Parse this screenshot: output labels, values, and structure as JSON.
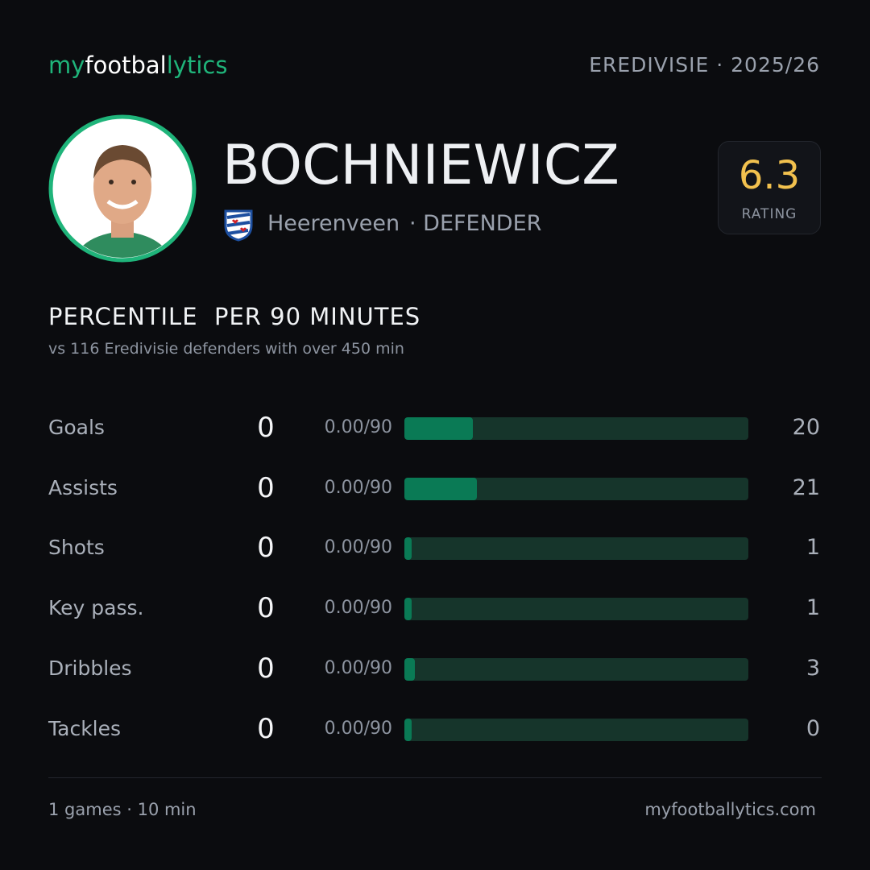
{
  "header": {
    "logo": [
      "my",
      "footbal",
      "lytics"
    ],
    "league": "EREDIVISIE · 2025/26"
  },
  "player": {
    "name": "BOCHNIEWICZ",
    "club": "Heerenveen",
    "position": "· DEFENDER",
    "rating": "6.3",
    "rating_label": "RATING"
  },
  "section": {
    "title": "PERCENTILE  PER 90 MINUTES",
    "subtitle": "vs 116 Eredivisie defenders with over 450 min"
  },
  "stats": {
    "xlim": [
      0,
      100
    ],
    "rows": [
      {
        "label": "Goals",
        "value": 0,
        "per90": "0.00/90",
        "percentile": 20
      },
      {
        "label": "Assists",
        "value": 0,
        "per90": "0.00/90",
        "percentile": 21
      },
      {
        "label": "Shots",
        "value": 0,
        "per90": "0.00/90",
        "percentile": 1
      },
      {
        "label": "Key pass.",
        "value": 0,
        "per90": "0.00/90",
        "percentile": 1
      },
      {
        "label": "Dribbles",
        "value": 0,
        "per90": "0.00/90",
        "percentile": 3
      },
      {
        "label": "Tackles",
        "value": 0,
        "per90": "0.00/90",
        "percentile": 0
      }
    ]
  },
  "footer": {
    "games": "1 games · 10 min",
    "site": "myfootballytics.com"
  }
}
